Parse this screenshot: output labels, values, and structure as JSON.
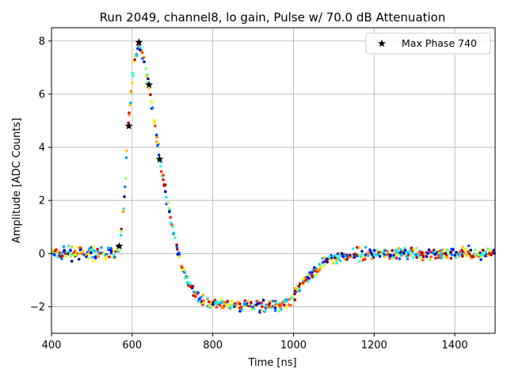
{
  "chart_data": {
    "type": "scatter",
    "title": "Run 2049, channel8, lo gain, Pulse w/ 70.0 dB Attenuation",
    "xlabel": "Time [ns]",
    "ylabel": "Amplitude [ADC Counts]",
    "xlim": [
      400,
      1500
    ],
    "ylim": [
      -3,
      8.5
    ],
    "xticks": [
      400,
      600,
      800,
      1000,
      1200,
      1400
    ],
    "yticks": [
      -2,
      0,
      2,
      4,
      6,
      8
    ],
    "grid": true,
    "legend_position": "top-right",
    "colormap": "jet",
    "pulse_shape": [
      [
        400,
        0
      ],
      [
        560,
        0
      ],
      [
        570,
        0.3
      ],
      [
        580,
        2.0
      ],
      [
        590,
        4.8
      ],
      [
        605,
        7.3
      ],
      [
        617,
        7.95
      ],
      [
        630,
        7.2
      ],
      [
        642,
        6.35
      ],
      [
        655,
        5.0
      ],
      [
        668,
        3.55
      ],
      [
        680,
        2.5
      ],
      [
        700,
        1.0
      ],
      [
        720,
        -0.4
      ],
      [
        740,
        -1.1
      ],
      [
        760,
        -1.6
      ],
      [
        790,
        -1.85
      ],
      [
        850,
        -1.95
      ],
      [
        950,
        -1.95
      ],
      [
        990,
        -1.8
      ],
      [
        1010,
        -1.4
      ],
      [
        1040,
        -0.8
      ],
      [
        1070,
        -0.4
      ],
      [
        1100,
        -0.15
      ],
      [
        1150,
        -0.05
      ],
      [
        1200,
        0
      ],
      [
        1500,
        0
      ]
    ],
    "series": [
      {
        "name": "Max Phase 740",
        "marker": "star",
        "color": "#000000",
        "points": [
          [
            568,
            0.28
          ],
          [
            592,
            4.8
          ],
          [
            617,
            7.95
          ],
          [
            642,
            6.35
          ],
          [
            668,
            3.55
          ]
        ]
      }
    ]
  }
}
